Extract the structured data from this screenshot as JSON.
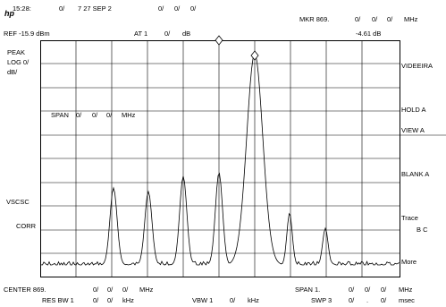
{
  "header": {
    "logo": "hp",
    "time": "15:28:",
    "date_parts": [
      "0/",
      "7 27 SEP 2",
      "0/",
      "0/",
      "0/"
    ],
    "ref": "REF -15.9 dBm",
    "atten": "AT 1",
    "atten_val": "0/",
    "atten_unit": "dB",
    "mkr": "MKR 869.",
    "mkr_parts": [
      "0/",
      "0/",
      "0/"
    ],
    "mkr_unit": "MHz",
    "mkr_level": "-4.61 dB"
  },
  "left_panel": {
    "peak": "PEAK",
    "log": "LOG 0/",
    "scale": "dB/",
    "vavg": "VSCSC",
    "corr": "CORR"
  },
  "graticule_text": {
    "span_label": "SPAN",
    "span_parts": [
      "0/",
      "0/",
      "0/"
    ],
    "span_unit": "MHz"
  },
  "softkeys": [
    {
      "label": "VIDEEIRA"
    },
    {
      "label": "HOLD A"
    },
    {
      "label": "VIEW A"
    },
    {
      "label": "BLANK A"
    },
    {
      "label": "Trace",
      "sub": "B C"
    },
    {
      "label": "More"
    }
  ],
  "footer": {
    "center": "CENTER 869.",
    "center_parts": [
      "0/",
      "0/",
      "0/"
    ],
    "center_unit": "MHz",
    "res_bw": "RES BW 1",
    "res_parts": [
      "0/",
      "0/"
    ],
    "res_unit": "kHz",
    "vbw": "VBW 1",
    "vbw_val": "0/",
    "vbw_unit": "kHz",
    "span": "SPAN 1.",
    "span_parts": [
      "0/",
      "0/",
      "0/"
    ],
    "span_unit": "MHz",
    "swp": "SWP 3",
    "swp_parts": [
      "0/",
      ".",
      "0/"
    ],
    "swp_unit": "msec"
  },
  "colors": {
    "trace": "#000000",
    "grid": "#000000"
  }
}
